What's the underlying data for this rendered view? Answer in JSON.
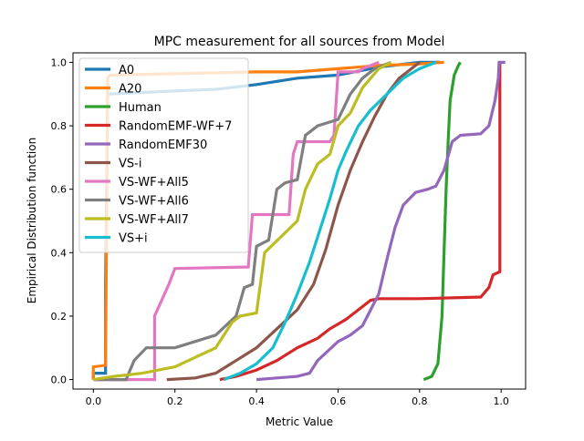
{
  "chart_data": {
    "type": "line",
    "title": "MPC measurement for all sources from Model",
    "xlabel": "Metric Value",
    "ylabel": "Empirical Distribution function",
    "xlim": [
      -0.05,
      1.06
    ],
    "ylim": [
      -0.03,
      1.03
    ],
    "xticks": [
      0.0,
      0.2,
      0.4,
      0.6,
      0.8,
      1.0
    ],
    "yticks": [
      0.0,
      0.2,
      0.4,
      0.6,
      0.8,
      1.0
    ],
    "xtick_labels": [
      "0.0",
      "0.2",
      "0.4",
      "0.6",
      "0.8",
      "1.0"
    ],
    "ytick_labels": [
      "0.0",
      "0.2",
      "0.4",
      "0.6",
      "0.8",
      "1.0"
    ],
    "grid": false,
    "legend_position": "top-left",
    "series": [
      {
        "name": "A0",
        "color": "#1f77b4",
        "points": [
          [
            0.0,
            0.0
          ],
          [
            0.0,
            0.02
          ],
          [
            0.03,
            0.02
          ],
          [
            0.03,
            0.3
          ],
          [
            0.035,
            0.9
          ],
          [
            0.2,
            0.91
          ],
          [
            0.3,
            0.915
          ],
          [
            0.4,
            0.93
          ],
          [
            0.45,
            0.94
          ],
          [
            0.5,
            0.95
          ],
          [
            0.6,
            0.96
          ],
          [
            0.7,
            0.985
          ],
          [
            0.8,
            1.0
          ],
          [
            0.85,
            1.0
          ]
        ]
      },
      {
        "name": "A20",
        "color": "#ff7f0e",
        "points": [
          [
            0.0,
            0.0
          ],
          [
            0.0,
            0.04
          ],
          [
            0.03,
            0.045
          ],
          [
            0.035,
            0.95
          ],
          [
            0.04,
            0.96
          ],
          [
            0.4,
            0.97
          ],
          [
            0.5,
            0.97
          ],
          [
            0.6,
            0.98
          ],
          [
            0.7,
            0.99
          ],
          [
            0.8,
            0.995
          ],
          [
            0.86,
            1.0
          ]
        ]
      },
      {
        "name": "Human",
        "color": "#2ca02c",
        "points": [
          [
            0.81,
            0.0
          ],
          [
            0.83,
            0.01
          ],
          [
            0.845,
            0.05
          ],
          [
            0.855,
            0.2
          ],
          [
            0.86,
            0.4
          ],
          [
            0.865,
            0.6
          ],
          [
            0.87,
            0.75
          ],
          [
            0.875,
            0.88
          ],
          [
            0.885,
            0.96
          ],
          [
            0.895,
            0.99
          ],
          [
            0.9,
            1.0
          ]
        ]
      },
      {
        "name": "RandomEMF-WF+7",
        "color": "#d62728",
        "points": [
          [
            0.31,
            0.0
          ],
          [
            0.35,
            0.01
          ],
          [
            0.4,
            0.03
          ],
          [
            0.45,
            0.06
          ],
          [
            0.5,
            0.1
          ],
          [
            0.55,
            0.13
          ],
          [
            0.58,
            0.16
          ],
          [
            0.62,
            0.19
          ],
          [
            0.65,
            0.22
          ],
          [
            0.68,
            0.25
          ],
          [
            0.7,
            0.255
          ],
          [
            0.8,
            0.255
          ],
          [
            0.95,
            0.26
          ],
          [
            0.97,
            0.29
          ],
          [
            0.98,
            0.33
          ],
          [
            0.997,
            0.34
          ],
          [
            0.997,
            1.0
          ]
        ]
      },
      {
        "name": "RandomEMF30",
        "color": "#9467bd",
        "points": [
          [
            0.4,
            0.0
          ],
          [
            0.45,
            0.005
          ],
          [
            0.5,
            0.01
          ],
          [
            0.53,
            0.02
          ],
          [
            0.55,
            0.06
          ],
          [
            0.6,
            0.12
          ],
          [
            0.63,
            0.14
          ],
          [
            0.66,
            0.17
          ],
          [
            0.68,
            0.22
          ],
          [
            0.7,
            0.27
          ],
          [
            0.72,
            0.38
          ],
          [
            0.74,
            0.48
          ],
          [
            0.76,
            0.55
          ],
          [
            0.79,
            0.59
          ],
          [
            0.82,
            0.6
          ],
          [
            0.84,
            0.61
          ],
          [
            0.86,
            0.66
          ],
          [
            0.88,
            0.75
          ],
          [
            0.9,
            0.77
          ],
          [
            0.95,
            0.775
          ],
          [
            0.97,
            0.8
          ],
          [
            0.985,
            0.88
          ],
          [
            0.993,
            0.95
          ],
          [
            0.995,
            1.0
          ],
          [
            1.01,
            1.0
          ]
        ]
      },
      {
        "name": "VS-i",
        "color": "#8c564b",
        "points": [
          [
            0.18,
            0.0
          ],
          [
            0.25,
            0.005
          ],
          [
            0.3,
            0.02
          ],
          [
            0.35,
            0.06
          ],
          [
            0.4,
            0.1
          ],
          [
            0.45,
            0.16
          ],
          [
            0.5,
            0.22
          ],
          [
            0.54,
            0.3
          ],
          [
            0.57,
            0.41
          ],
          [
            0.6,
            0.55
          ],
          [
            0.63,
            0.66
          ],
          [
            0.66,
            0.75
          ],
          [
            0.69,
            0.83
          ],
          [
            0.72,
            0.9
          ],
          [
            0.75,
            0.95
          ],
          [
            0.78,
            0.98
          ],
          [
            0.8,
            1.0
          ]
        ]
      },
      {
        "name": "VS-WF+All5",
        "color": "#e377c2",
        "points": [
          [
            0.0,
            0.0
          ],
          [
            0.15,
            0.0
          ],
          [
            0.15,
            0.2
          ],
          [
            0.185,
            0.3
          ],
          [
            0.2,
            0.35
          ],
          [
            0.38,
            0.355
          ],
          [
            0.39,
            0.52
          ],
          [
            0.48,
            0.52
          ],
          [
            0.49,
            0.71
          ],
          [
            0.5,
            0.75
          ],
          [
            0.58,
            0.75
          ],
          [
            0.59,
            0.77
          ],
          [
            0.6,
            0.97
          ],
          [
            0.65,
            0.97
          ],
          [
            0.66,
            0.98
          ],
          [
            0.7,
            1.0
          ]
        ]
      },
      {
        "name": "VS-WF+All6",
        "color": "#7f7f7f",
        "points": [
          [
            0.0,
            0.0
          ],
          [
            0.08,
            0.0
          ],
          [
            0.1,
            0.06
          ],
          [
            0.13,
            0.1
          ],
          [
            0.2,
            0.1
          ],
          [
            0.3,
            0.14
          ],
          [
            0.35,
            0.2
          ],
          [
            0.37,
            0.29
          ],
          [
            0.39,
            0.3
          ],
          [
            0.4,
            0.42
          ],
          [
            0.43,
            0.44
          ],
          [
            0.45,
            0.6
          ],
          [
            0.47,
            0.62
          ],
          [
            0.5,
            0.63
          ],
          [
            0.52,
            0.77
          ],
          [
            0.55,
            0.8
          ],
          [
            0.6,
            0.82
          ],
          [
            0.63,
            0.9
          ],
          [
            0.66,
            0.95
          ],
          [
            0.69,
            0.98
          ],
          [
            0.73,
            1.0
          ]
        ]
      },
      {
        "name": "VS-WF+All7",
        "color": "#bcbd22",
        "points": [
          [
            0.0,
            0.0
          ],
          [
            0.05,
            0.01
          ],
          [
            0.12,
            0.02
          ],
          [
            0.2,
            0.04
          ],
          [
            0.3,
            0.1
          ],
          [
            0.34,
            0.18
          ],
          [
            0.36,
            0.2
          ],
          [
            0.4,
            0.21
          ],
          [
            0.42,
            0.4
          ],
          [
            0.46,
            0.45
          ],
          [
            0.5,
            0.5
          ],
          [
            0.52,
            0.6
          ],
          [
            0.55,
            0.68
          ],
          [
            0.58,
            0.71
          ],
          [
            0.6,
            0.8
          ],
          [
            0.63,
            0.84
          ],
          [
            0.66,
            0.92
          ],
          [
            0.7,
            0.98
          ],
          [
            0.73,
            1.0
          ]
        ]
      },
      {
        "name": "VS+i",
        "color": "#17becf",
        "points": [
          [
            0.32,
            0.0
          ],
          [
            0.36,
            0.02
          ],
          [
            0.4,
            0.05
          ],
          [
            0.44,
            0.1
          ],
          [
            0.47,
            0.18
          ],
          [
            0.5,
            0.27
          ],
          [
            0.53,
            0.37
          ],
          [
            0.56,
            0.49
          ],
          [
            0.58,
            0.57
          ],
          [
            0.6,
            0.66
          ],
          [
            0.62,
            0.72
          ],
          [
            0.65,
            0.8
          ],
          [
            0.68,
            0.85
          ],
          [
            0.72,
            0.9
          ],
          [
            0.76,
            0.95
          ],
          [
            0.8,
            0.98
          ],
          [
            0.84,
            1.0
          ]
        ]
      }
    ]
  }
}
